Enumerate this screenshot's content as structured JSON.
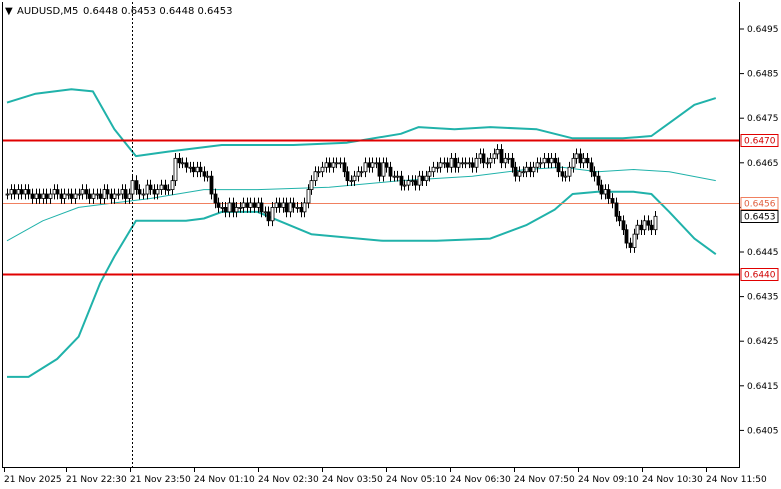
{
  "header": {
    "marker": "▼",
    "symbol": "AUDUSD,M5",
    "ohlc": "0.6448 0.6453 0.6448 0.6453"
  },
  "chart_data": {
    "type": "candlestick",
    "symbol": "AUDUSD",
    "timeframe": "M5",
    "ylim": [
      0.64,
      0.6499
    ],
    "y_ticks": [
      "0.6495",
      "0.6485",
      "0.6475",
      "0.6465",
      "0.6455",
      "0.6445",
      "0.6435",
      "0.6425",
      "0.6415",
      "0.6405"
    ],
    "x_ticks": [
      "21 Nov 2025",
      "21 Nov 22:30",
      "21 Nov 23:50",
      "24 Nov 01:10",
      "24 Nov 02:30",
      "24 Nov 03:50",
      "24 Nov 05:10",
      "24 Nov 06:30",
      "24 Nov 07:50",
      "24 Nov 09:10",
      "24 Nov 10:30",
      "24 Nov 11:50"
    ],
    "horizontal_levels": [
      {
        "label": "0.6470",
        "value": 0.647,
        "color": "#e00000"
      },
      {
        "label": "0.6456",
        "value": 0.6456,
        "color": "#f08060"
      },
      {
        "label": "0.6440",
        "value": 0.644,
        "color": "#e00000"
      }
    ],
    "current_price": {
      "label": "0.6453",
      "value": 0.6453
    },
    "session_separator_index": 35,
    "closes": [
      0.6458,
      0.6459,
      0.6458,
      0.6459,
      0.6458,
      0.6459,
      0.6458,
      0.6457,
      0.6458,
      0.6457,
      0.6458,
      0.6457,
      0.6458,
      0.6459,
      0.6458,
      0.6457,
      0.6458,
      0.6458,
      0.6457,
      0.6458,
      0.6458,
      0.6459,
      0.6458,
      0.6457,
      0.6458,
      0.6458,
      0.6457,
      0.6459,
      0.6458,
      0.6457,
      0.6458,
      0.6458,
      0.6459,
      0.6457,
      0.6458,
      0.6461,
      0.6459,
      0.6458,
      0.6458,
      0.646,
      0.6459,
      0.6458,
      0.6459,
      0.646,
      0.6459,
      0.6459,
      0.6461,
      0.6466,
      0.6465,
      0.6465,
      0.6464,
      0.6464,
      0.6463,
      0.6464,
      0.6463,
      0.6462,
      0.6462,
      0.6458,
      0.6456,
      0.6455,
      0.6455,
      0.6454,
      0.6456,
      0.6454,
      0.6455,
      0.6455,
      0.6456,
      0.6455,
      0.6456,
      0.6455,
      0.6456,
      0.6454,
      0.6454,
      0.6452,
      0.6455,
      0.6456,
      0.6455,
      0.6456,
      0.6454,
      0.6456,
      0.6455,
      0.6455,
      0.6454,
      0.6456,
      0.6459,
      0.6461,
      0.6463,
      0.6463,
      0.6464,
      0.6465,
      0.6464,
      0.6465,
      0.6465,
      0.6465,
      0.6463,
      0.6461,
      0.6461,
      0.6462,
      0.6463,
      0.6463,
      0.6465,
      0.6464,
      0.6465,
      0.6465,
      0.6462,
      0.6465,
      0.6464,
      0.6462,
      0.6462,
      0.6462,
      0.646,
      0.646,
      0.6461,
      0.6461,
      0.646,
      0.6462,
      0.6461,
      0.6462,
      0.6463,
      0.6464,
      0.6464,
      0.6465,
      0.6465,
      0.6464,
      0.6466,
      0.6464,
      0.6465,
      0.6465,
      0.6465,
      0.6465,
      0.6464,
      0.6466,
      0.6467,
      0.6465,
      0.6465,
      0.6466,
      0.6467,
      0.6468,
      0.6465,
      0.6466,
      0.6466,
      0.6464,
      0.6462,
      0.6463,
      0.6463,
      0.6464,
      0.6463,
      0.6464,
      0.6465,
      0.6465,
      0.6466,
      0.6465,
      0.6466,
      0.6465,
      0.6463,
      0.6462,
      0.6462,
      0.6464,
      0.6466,
      0.6467,
      0.6465,
      0.6466,
      0.6465,
      0.6463,
      0.6462,
      0.646,
      0.6458,
      0.6459,
      0.6457,
      0.6456,
      0.6453,
      0.6452,
      0.645,
      0.6447,
      0.6446,
      0.6449,
      0.6451,
      0.645,
      0.6452,
      0.6451,
      0.645,
      0.6453
    ],
    "bollinger_upper": [
      [
        0,
        0.64785
      ],
      [
        8,
        0.64805
      ],
      [
        18,
        0.64815
      ],
      [
        24,
        0.6481
      ],
      [
        30,
        0.64725
      ],
      [
        36,
        0.64665
      ],
      [
        45,
        0.64675
      ],
      [
        60,
        0.6469
      ],
      [
        80,
        0.6469
      ],
      [
        95,
        0.64695
      ],
      [
        110,
        0.64715
      ],
      [
        115,
        0.6473
      ],
      [
        125,
        0.64725
      ],
      [
        135,
        0.6473
      ],
      [
        148,
        0.64725
      ],
      [
        158,
        0.64705
      ],
      [
        172,
        0.64705
      ],
      [
        180,
        0.6471
      ],
      [
        186,
        0.64745
      ],
      [
        192,
        0.6478
      ],
      [
        198,
        0.64795
      ]
    ],
    "bollinger_middle": [
      [
        0,
        0.64475
      ],
      [
        10,
        0.6452
      ],
      [
        20,
        0.6455
      ],
      [
        30,
        0.6456
      ],
      [
        40,
        0.6457
      ],
      [
        55,
        0.6459
      ],
      [
        70,
        0.6459
      ],
      [
        90,
        0.64595
      ],
      [
        110,
        0.6461
      ],
      [
        130,
        0.6462
      ],
      [
        145,
        0.64635
      ],
      [
        155,
        0.6464
      ],
      [
        165,
        0.6463
      ],
      [
        175,
        0.64635
      ],
      [
        185,
        0.6463
      ],
      [
        198,
        0.6461
      ]
    ],
    "bollinger_lower": [
      [
        0,
        0.6417
      ],
      [
        6,
        0.6417
      ],
      [
        14,
        0.6421
      ],
      [
        20,
        0.6426
      ],
      [
        26,
        0.6438
      ],
      [
        30,
        0.6444
      ],
      [
        36,
        0.6452
      ],
      [
        50,
        0.6452
      ],
      [
        55,
        0.64525
      ],
      [
        60,
        0.6454
      ],
      [
        70,
        0.6454
      ],
      [
        85,
        0.6449
      ],
      [
        105,
        0.64475
      ],
      [
        120,
        0.64475
      ],
      [
        135,
        0.6448
      ],
      [
        145,
        0.6451
      ],
      [
        153,
        0.64545
      ],
      [
        158,
        0.6458
      ],
      [
        165,
        0.64585
      ],
      [
        175,
        0.64585
      ],
      [
        180,
        0.6458
      ],
      [
        185,
        0.6454
      ],
      [
        192,
        0.6448
      ],
      [
        198,
        0.64445
      ]
    ]
  }
}
